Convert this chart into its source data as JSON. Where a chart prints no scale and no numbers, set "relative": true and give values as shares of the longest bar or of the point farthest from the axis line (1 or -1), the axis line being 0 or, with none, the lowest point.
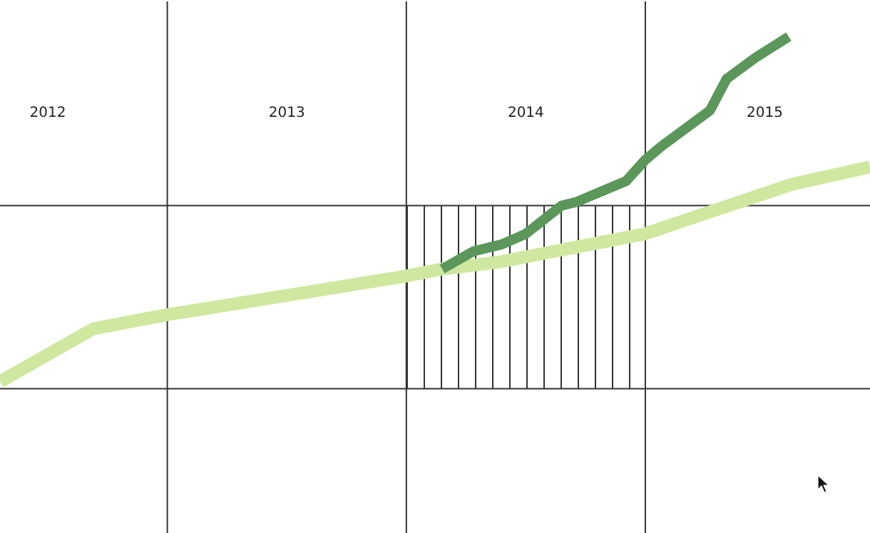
{
  "chart_data": {
    "type": "line",
    "relative": true,
    "marker": "none",
    "line_style": "solid",
    "xlim": [
      2012.3,
      2015.94
    ],
    "xticks": [
      {
        "value": 2012.5,
        "label": "2012"
      },
      {
        "value": 2013.5,
        "label": "2013"
      },
      {
        "value": 2014.5,
        "label": "2014"
      },
      {
        "value": 2015.5,
        "label": "2015"
      }
    ],
    "series": [
      {
        "color": "#cfe8a0",
        "x": [
          2012.3,
          2012.69,
          2013.0,
          2014.0,
          2014.15,
          2014.39,
          2015.0,
          2015.61,
          2015.94
        ],
        "values": [
          0.02,
          0.17,
          0.21,
          0.32,
          0.34,
          0.36,
          0.44,
          0.58,
          0.63
        ]
      },
      {
        "color": "#5b975b",
        "x": [
          2014.15,
          2014.28,
          2014.4,
          2014.5,
          2014.65,
          2014.71,
          2014.92,
          2015.0,
          2015.07,
          2015.27,
          2015.34,
          2015.46,
          2015.6
        ],
        "values": [
          0.34,
          0.39,
          0.41,
          0.44,
          0.52,
          0.53,
          0.59,
          0.65,
          0.69,
          0.79,
          0.88,
          0.94,
          1.0
        ]
      }
    ],
    "ref_lines": [
      {
        "axis": "x",
        "value": 2013,
        "color": "#333333"
      },
      {
        "axis": "x",
        "value": 2014,
        "color": "#333333"
      },
      {
        "axis": "x",
        "value": 2015,
        "color": "#333333"
      },
      {
        "axis": "y",
        "value": 0,
        "color": "#333333"
      },
      {
        "axis": "y",
        "value": 0.52,
        "color": "#333333"
      }
    ],
    "bands": [
      {
        "axis": "x",
        "from": 2014,
        "to": 2015,
        "color": "#333333"
      }
    ]
  }
}
